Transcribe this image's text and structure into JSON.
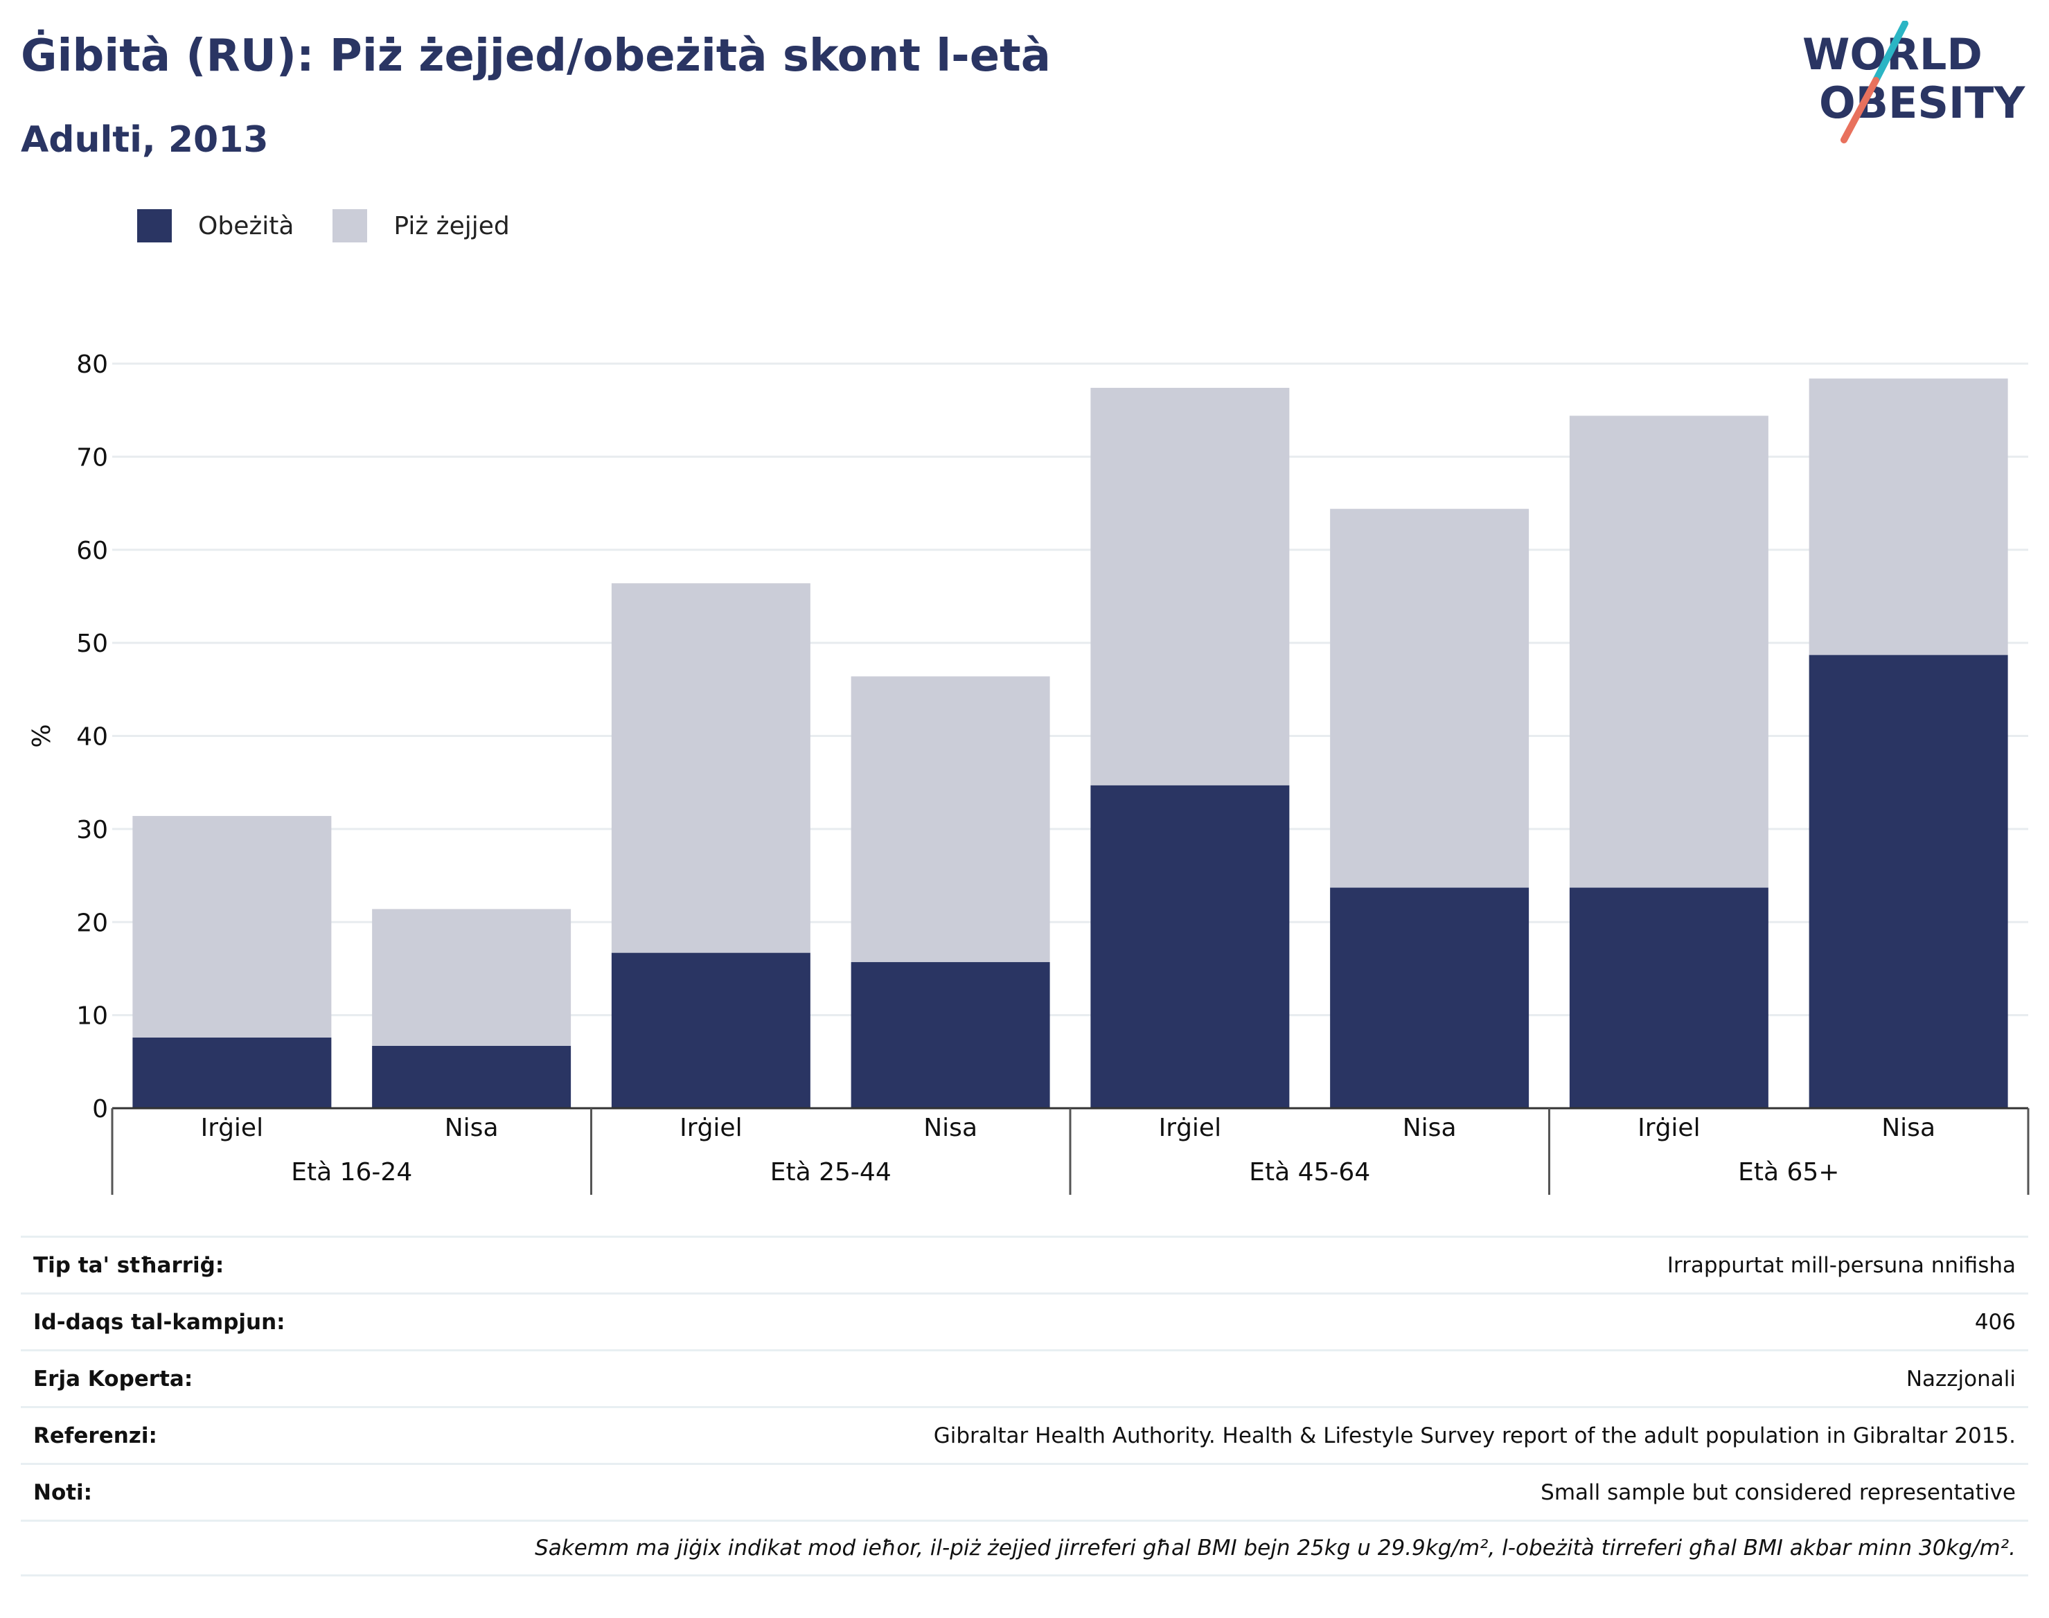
{
  "header": {
    "title": "Ġibità (RU): Piż żejjed/obeżità skont l-età",
    "subtitle": "Adulti, 2013"
  },
  "logo": {
    "line1": "WORLD",
    "line2": "OBESITY",
    "colors": {
      "text": "#2a3563",
      "slash_top": "#2bb5c4",
      "slash_bottom": "#e8715d"
    }
  },
  "legend": [
    {
      "label": "Obeżità",
      "color": "#2a3563"
    },
    {
      "label": "Piż żejjed",
      "color": "#cbcdd8"
    }
  ],
  "chart_data": {
    "type": "bar",
    "stacked": true,
    "ylabel": "%",
    "ylim": [
      0,
      80
    ],
    "yticks": [
      0,
      10,
      20,
      30,
      40,
      50,
      60,
      70,
      80
    ],
    "grid": true,
    "legend_position": "top-left",
    "groups": [
      "Età 16-24",
      "Età 25-44",
      "Età 45-64",
      "Età 65+"
    ],
    "categories": [
      "Irġiel",
      "Nisa",
      "Irġiel",
      "Nisa",
      "Irġiel",
      "Nisa",
      "Irġiel",
      "Nisa"
    ],
    "series": [
      {
        "name": "Obeżità",
        "color": "#2a3563",
        "values": [
          7.6,
          6.7,
          16.7,
          15.7,
          34.7,
          23.7,
          23.7,
          48.7
        ]
      },
      {
        "name": "Piż żejjed",
        "color": "#cbcdd8",
        "values": [
          23.8,
          14.7,
          39.7,
          30.7,
          42.7,
          40.7,
          50.7,
          29.7
        ]
      }
    ]
  },
  "info_table": [
    {
      "label": "Tip ta' stħarriġ:",
      "value": "Irrappurtat mill-persuna nnifisha"
    },
    {
      "label": "Id-daqs tal-kampjun:",
      "value": "406"
    },
    {
      "label": "Erja Koperta:",
      "value": "Nazzjonali"
    },
    {
      "label": "Referenzi:",
      "value": "Gibraltar Health Authority. Health & Lifestyle Survey report of the adult population in Gibraltar 2015."
    },
    {
      "label": "Noti:",
      "value": "Small sample but considered representative"
    }
  ],
  "footnote": "Sakemm ma jiġix indikat mod ieħor, il-piż żejjed jirreferi għal BMI bejn 25kg u 29.9kg/m², l-obeżità tirreferi għal BMI akbar minn 30kg/m²."
}
